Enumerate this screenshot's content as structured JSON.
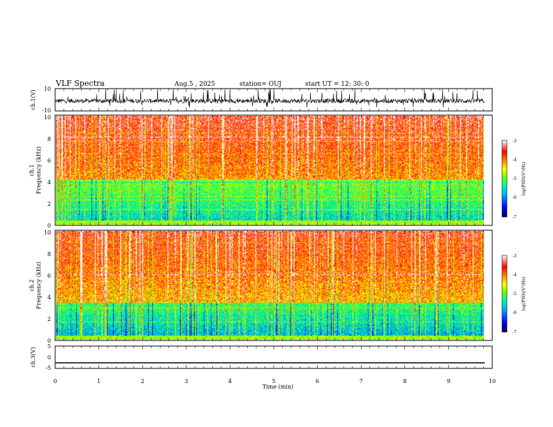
{
  "header": {
    "title": "VLF Spectra",
    "date": "Aug.5 , 2025",
    "station": "station= OUJ",
    "start": "start UT = 12: 30: 0"
  },
  "colors": {
    "axis": "#000000",
    "trace": "#000000",
    "cmap": [
      "#00005a",
      "#0000ff",
      "#00b4ff",
      "#00ff96",
      "#64ff00",
      "#ffff00",
      "#ff9600",
      "#ff0000",
      "#ffffff"
    ]
  },
  "chart_data": [
    {
      "type": "line",
      "name": "ch1-waveform",
      "ylabel": "ch.1(V)",
      "ylim": [
        -10,
        10
      ],
      "yticks": [
        "10",
        "-10"
      ],
      "description_values": "noisy waveform centred near -1 V with spikes to about +/-10 V"
    },
    {
      "type": "heatmap",
      "name": "ch1-spectrogram",
      "ylabel": [
        "ch.1",
        "Frequency (kHz)"
      ],
      "ylim": [
        0,
        10
      ],
      "yticks": [
        "0",
        "2",
        "4",
        "6",
        "8",
        "10"
      ],
      "xlim": [
        0,
        9.83
      ],
      "colorbar": {
        "label": "log(PSD)(V²/Hz)",
        "range": [
          -7,
          -3
        ],
        "ticks": [
          "-3",
          "-4",
          "-5",
          "-6",
          "-7"
        ]
      },
      "pattern": "low power (blue/green) below ~4 kHz, high power (red) above ~5 kHz, vertical broadband impulses throughout"
    },
    {
      "type": "heatmap",
      "name": "ch2-spectrogram",
      "ylabel": [
        "ch.2",
        "Frequency (kHz)"
      ],
      "ylim": [
        0,
        10
      ],
      "yticks": [
        "0",
        "2",
        "4",
        "6",
        "8",
        "10"
      ],
      "xlim": [
        0,
        9.83
      ],
      "colorbar": {
        "label": "log(PSD)(V²/Hz)",
        "range": [
          -7,
          -3
        ],
        "ticks": [
          "-3",
          "-4",
          "-5",
          "-6",
          "-7"
        ]
      },
      "pattern": "low power (blue/green) below ~3 kHz, mixed yellow/red above, vertical broadband impulses throughout"
    },
    {
      "type": "line",
      "name": "ch3-waveform",
      "ylabel": "ch.3(V)",
      "ylim": [
        -5,
        5
      ],
      "yticks": [
        "5",
        "0",
        "-5"
      ],
      "x": [
        0,
        9.83
      ],
      "y": [
        -2.5,
        -2.5
      ]
    }
  ],
  "xaxis": {
    "label": "Time (min)",
    "range": [
      0,
      10
    ],
    "ticks": [
      "0",
      "1",
      "2",
      "3",
      "4",
      "5",
      "6",
      "7",
      "8",
      "9",
      "10"
    ]
  }
}
